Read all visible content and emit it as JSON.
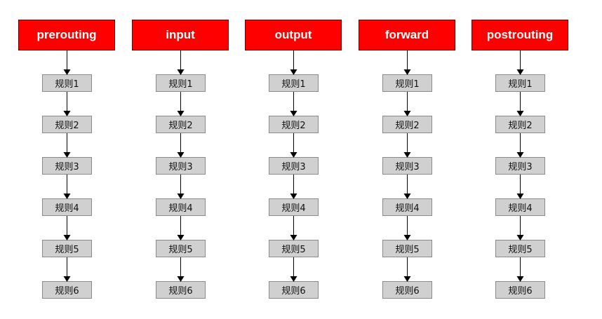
{
  "chains": [
    {
      "name": "prerouting",
      "rules": [
        "规则1",
        "规则2",
        "规则3",
        "规则4",
        "规则5",
        "规则6"
      ]
    },
    {
      "name": "input",
      "rules": [
        "规则1",
        "规则2",
        "规则3",
        "规则4",
        "规则5",
        "规则6"
      ]
    },
    {
      "name": "output",
      "rules": [
        "规则1",
        "规则2",
        "规则3",
        "规则4",
        "规则5",
        "规则6"
      ]
    },
    {
      "name": "forward",
      "rules": [
        "规则1",
        "规则2",
        "规则3",
        "规则4",
        "规则5",
        "规则6"
      ]
    },
    {
      "name": "postrouting",
      "rules": [
        "规则1",
        "规则2",
        "规则3",
        "规则4",
        "规则5",
        "规则6"
      ]
    }
  ],
  "colors": {
    "chain_fill": "#ff0000",
    "rule_fill": "#d0d0d0",
    "arrow": "#000000"
  }
}
